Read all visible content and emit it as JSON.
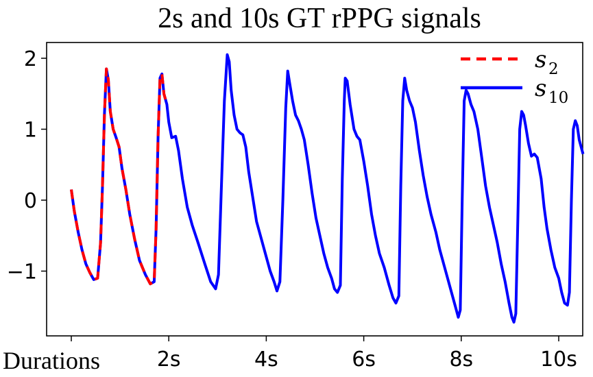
{
  "chart_data": {
    "type": "line",
    "title": "2s and 10s GT rPPG signals",
    "xlabel": "Durations",
    "ylabel": "",
    "xlim": [
      -0.45,
      10.45
    ],
    "ylim": [
      -1.85,
      2.2
    ],
    "xticks": [
      {
        "value": 0,
        "label": ""
      },
      {
        "value": 2,
        "label": "2s"
      },
      {
        "value": 4,
        "label": "4s"
      },
      {
        "value": 6,
        "label": "6s"
      },
      {
        "value": 8,
        "label": "8s"
      },
      {
        "value": 10,
        "label": "10s"
      }
    ],
    "yticks": [
      {
        "value": 2,
        "label": "2"
      },
      {
        "value": 1,
        "label": "1"
      },
      {
        "value": 0,
        "label": "0"
      },
      {
        "value": -1,
        "label": "−1"
      }
    ],
    "grid": false,
    "legend_position": "top-right",
    "series": [
      {
        "name": "s",
        "name_subscript": "2",
        "color": "#ff0000",
        "style": "dashed",
        "points": [
          [
            0,
            0.15
          ],
          [
            0.06,
            -0.15
          ],
          [
            0.14,
            -0.45
          ],
          [
            0.22,
            -0.7
          ],
          [
            0.3,
            -0.9
          ],
          [
            0.38,
            -1.02
          ],
          [
            0.46,
            -1.12
          ],
          [
            0.54,
            -1.1
          ],
          [
            0.6,
            -0.6
          ],
          [
            0.64,
            0.2
          ],
          [
            0.68,
            1.2
          ],
          [
            0.72,
            1.85
          ],
          [
            0.76,
            1.7
          ],
          [
            0.8,
            1.25
          ],
          [
            0.86,
            1.0
          ],
          [
            0.92,
            0.88
          ],
          [
            0.98,
            0.75
          ],
          [
            1.04,
            0.45
          ],
          [
            1.12,
            0.15
          ],
          [
            1.2,
            -0.2
          ],
          [
            1.3,
            -0.55
          ],
          [
            1.4,
            -0.85
          ],
          [
            1.52,
            -1.05
          ],
          [
            1.62,
            -1.18
          ],
          [
            1.7,
            -1.15
          ],
          [
            1.74,
            -0.4
          ],
          [
            1.78,
            0.9
          ],
          [
            1.82,
            1.72
          ],
          [
            1.86,
            1.78
          ],
          [
            1.9,
            1.5
          ],
          [
            1.96,
            1.35
          ]
        ]
      },
      {
        "name": "s",
        "name_subscript": "10",
        "color": "#0000ff",
        "style": "solid",
        "points": [
          [
            0,
            0.15
          ],
          [
            0.06,
            -0.15
          ],
          [
            0.14,
            -0.45
          ],
          [
            0.22,
            -0.7
          ],
          [
            0.3,
            -0.9
          ],
          [
            0.38,
            -1.02
          ],
          [
            0.46,
            -1.12
          ],
          [
            0.54,
            -1.1
          ],
          [
            0.6,
            -0.6
          ],
          [
            0.64,
            0.2
          ],
          [
            0.68,
            1.2
          ],
          [
            0.72,
            1.85
          ],
          [
            0.76,
            1.7
          ],
          [
            0.8,
            1.25
          ],
          [
            0.86,
            1.0
          ],
          [
            0.92,
            0.88
          ],
          [
            0.98,
            0.75
          ],
          [
            1.04,
            0.45
          ],
          [
            1.12,
            0.15
          ],
          [
            1.2,
            -0.2
          ],
          [
            1.3,
            -0.55
          ],
          [
            1.4,
            -0.85
          ],
          [
            1.52,
            -1.05
          ],
          [
            1.62,
            -1.18
          ],
          [
            1.7,
            -1.15
          ],
          [
            1.74,
            -0.4
          ],
          [
            1.78,
            0.9
          ],
          [
            1.82,
            1.72
          ],
          [
            1.86,
            1.78
          ],
          [
            1.9,
            1.5
          ],
          [
            1.96,
            1.35
          ],
          [
            2.0,
            1.1
          ],
          [
            2.06,
            0.88
          ],
          [
            2.14,
            0.9
          ],
          [
            2.2,
            0.7
          ],
          [
            2.28,
            0.3
          ],
          [
            2.38,
            -0.1
          ],
          [
            2.48,
            -0.35
          ],
          [
            2.6,
            -0.6
          ],
          [
            2.74,
            -0.9
          ],
          [
            2.86,
            -1.15
          ],
          [
            2.96,
            -1.25
          ],
          [
            3.02,
            -1.05
          ],
          [
            3.08,
            0.2
          ],
          [
            3.14,
            1.4
          ],
          [
            3.2,
            2.05
          ],
          [
            3.24,
            1.95
          ],
          [
            3.28,
            1.55
          ],
          [
            3.34,
            1.2
          ],
          [
            3.4,
            1.0
          ],
          [
            3.46,
            0.95
          ],
          [
            3.52,
            0.92
          ],
          [
            3.58,
            0.75
          ],
          [
            3.64,
            0.4
          ],
          [
            3.72,
            0.05
          ],
          [
            3.8,
            -0.3
          ],
          [
            3.9,
            -0.55
          ],
          [
            4.0,
            -0.8
          ],
          [
            4.08,
            -1.0
          ],
          [
            4.16,
            -1.15
          ],
          [
            4.22,
            -1.28
          ],
          [
            4.28,
            -1.15
          ],
          [
            4.34,
            0.0
          ],
          [
            4.4,
            1.3
          ],
          [
            4.44,
            1.82
          ],
          [
            4.48,
            1.65
          ],
          [
            4.54,
            1.4
          ],
          [
            4.6,
            1.2
          ],
          [
            4.66,
            1.12
          ],
          [
            4.72,
            1.0
          ],
          [
            4.78,
            0.85
          ],
          [
            4.86,
            0.5
          ],
          [
            4.94,
            0.1
          ],
          [
            5.02,
            -0.25
          ],
          [
            5.1,
            -0.5
          ],
          [
            5.18,
            -0.75
          ],
          [
            5.26,
            -0.95
          ],
          [
            5.34,
            -1.1
          ],
          [
            5.4,
            -1.25
          ],
          [
            5.46,
            -1.3
          ],
          [
            5.52,
            -1.2
          ],
          [
            5.56,
            0.3
          ],
          [
            5.6,
            1.4
          ],
          [
            5.62,
            1.72
          ],
          [
            5.66,
            1.68
          ],
          [
            5.72,
            1.35
          ],
          [
            5.8,
            1.0
          ],
          [
            5.86,
            0.9
          ],
          [
            5.92,
            0.85
          ],
          [
            6.0,
            0.55
          ],
          [
            6.08,
            0.2
          ],
          [
            6.16,
            -0.2
          ],
          [
            6.24,
            -0.5
          ],
          [
            6.32,
            -0.75
          ],
          [
            6.42,
            -0.95
          ],
          [
            6.52,
            -1.2
          ],
          [
            6.6,
            -1.38
          ],
          [
            6.66,
            -1.45
          ],
          [
            6.72,
            -1.35
          ],
          [
            6.76,
            0.2
          ],
          [
            6.8,
            1.4
          ],
          [
            6.84,
            1.72
          ],
          [
            6.88,
            1.55
          ],
          [
            6.94,
            1.4
          ],
          [
            7.0,
            1.3
          ],
          [
            7.06,
            1.1
          ],
          [
            7.14,
            0.7
          ],
          [
            7.22,
            0.35
          ],
          [
            7.3,
            0.05
          ],
          [
            7.38,
            -0.2
          ],
          [
            7.48,
            -0.45
          ],
          [
            7.56,
            -0.7
          ],
          [
            7.64,
            -0.9
          ],
          [
            7.72,
            -1.1
          ],
          [
            7.8,
            -1.3
          ],
          [
            7.88,
            -1.5
          ],
          [
            7.94,
            -1.65
          ],
          [
            7.98,
            -1.55
          ],
          [
            8.02,
            0.0
          ],
          [
            8.06,
            1.4
          ],
          [
            8.1,
            1.55
          ],
          [
            8.14,
            1.5
          ],
          [
            8.2,
            1.35
          ],
          [
            8.26,
            1.25
          ],
          [
            8.34,
            1.0
          ],
          [
            8.42,
            0.6
          ],
          [
            8.5,
            0.2
          ],
          [
            8.58,
            -0.1
          ],
          [
            8.66,
            -0.35
          ],
          [
            8.74,
            -0.6
          ],
          [
            8.82,
            -0.9
          ],
          [
            8.9,
            -1.15
          ],
          [
            8.98,
            -1.45
          ],
          [
            9.04,
            -1.65
          ],
          [
            9.08,
            -1.72
          ],
          [
            9.12,
            -1.6
          ],
          [
            9.16,
            -0.3
          ],
          [
            9.2,
            1.0
          ],
          [
            9.24,
            1.25
          ],
          [
            9.28,
            1.2
          ],
          [
            9.32,
            1.05
          ],
          [
            9.38,
            0.8
          ],
          [
            9.44,
            0.62
          ],
          [
            9.5,
            0.65
          ],
          [
            9.56,
            0.6
          ],
          [
            9.64,
            0.3
          ],
          [
            9.7,
            -0.1
          ],
          [
            9.76,
            -0.4
          ],
          [
            9.84,
            -0.7
          ],
          [
            9.92,
            -0.95
          ],
          [
            10.0,
            -1.1
          ],
          [
            10.06,
            -1.3
          ],
          [
            10.12,
            -1.45
          ],
          [
            10.18,
            -1.48
          ],
          [
            10.22,
            -1.3
          ],
          [
            10.26,
            0.0
          ],
          [
            10.3,
            1.0
          ],
          [
            10.34,
            1.12
          ],
          [
            10.38,
            1.05
          ],
          [
            10.42,
            0.85
          ],
          [
            10.46,
            0.75
          ],
          [
            10.5,
            0.65
          ]
        ]
      }
    ]
  }
}
